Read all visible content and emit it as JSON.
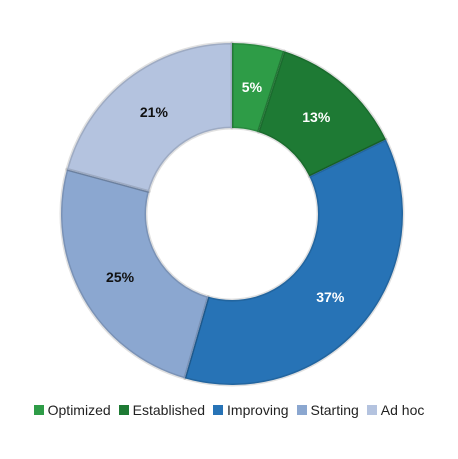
{
  "chart_data": {
    "type": "pie",
    "donut": true,
    "categories": [
      "Optimized",
      "Established",
      "Improving",
      "Starting",
      "Ad hoc"
    ],
    "values": [
      5,
      13,
      37,
      25,
      21
    ],
    "labels": [
      "5%",
      "13%",
      "37%",
      "25%",
      "21%"
    ],
    "colors": [
      "#2e9c47",
      "#1e7a34",
      "#2773b6",
      "#8ba7d0",
      "#b4c3df"
    ],
    "label_colors": [
      "#ffffff",
      "#ffffff",
      "#ffffff",
      "#111111",
      "#111111"
    ],
    "legend_position": "bottom"
  }
}
